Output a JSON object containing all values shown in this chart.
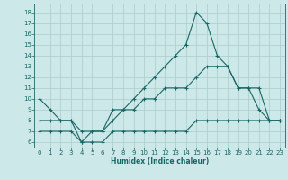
{
  "xlabel": "Humidex (Indice chaleur)",
  "bg_color": "#cce8e8",
  "grid_color": "#aacccc",
  "line_color": "#1a6666",
  "xlim": [
    -0.5,
    23.5
  ],
  "ylim": [
    5.5,
    18.8
  ],
  "xticks": [
    0,
    1,
    2,
    3,
    4,
    5,
    6,
    7,
    8,
    9,
    10,
    11,
    12,
    13,
    14,
    15,
    16,
    17,
    18,
    19,
    20,
    21,
    22,
    23
  ],
  "yticks": [
    6,
    7,
    8,
    9,
    10,
    11,
    12,
    13,
    14,
    15,
    16,
    17,
    18
  ],
  "line1_x": [
    0,
    1,
    2,
    3,
    4,
    5,
    6,
    7,
    8,
    9,
    10,
    11,
    12,
    13,
    14,
    15,
    16,
    17,
    18,
    19,
    20,
    21,
    22,
    23
  ],
  "line1_y": [
    10,
    9,
    8,
    8,
    7,
    7,
    7,
    9,
    9,
    10,
    11,
    12,
    13,
    14,
    15,
    18,
    17,
    14,
    13,
    11,
    11,
    9,
    8,
    8
  ],
  "line2_x": [
    0,
    1,
    2,
    3,
    4,
    5,
    6,
    7,
    8,
    9,
    10,
    11,
    12,
    13,
    14,
    15,
    16,
    17,
    18,
    19,
    20,
    21,
    22,
    23
  ],
  "line2_y": [
    8,
    8,
    8,
    8,
    6,
    7,
    7,
    8,
    9,
    9,
    10,
    10,
    11,
    11,
    11,
    12,
    13,
    13,
    13,
    11,
    11,
    11,
    8,
    8
  ],
  "line3_x": [
    0,
    1,
    2,
    3,
    4,
    5,
    6,
    7,
    8,
    9,
    10,
    11,
    12,
    13,
    14,
    15,
    16,
    17,
    18,
    19,
    20,
    21,
    22,
    23
  ],
  "line3_y": [
    7,
    7,
    7,
    7,
    6,
    6,
    6,
    7,
    7,
    7,
    7,
    7,
    7,
    7,
    7,
    8,
    8,
    8,
    8,
    8,
    8,
    8,
    8,
    8
  ]
}
